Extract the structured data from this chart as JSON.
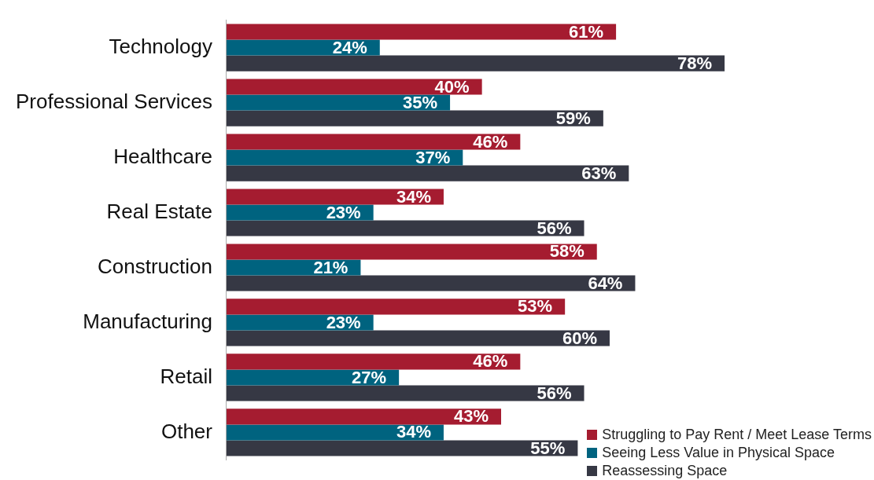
{
  "chart_data": {
    "type": "bar",
    "orientation": "horizontal",
    "legend": "bottom right",
    "categories": [
      "Technology",
      "Professional Services",
      "Healthcare",
      "Real Estate",
      "Construction",
      "Manufacturing",
      "Retail",
      "Other"
    ],
    "series": [
      {
        "name": "Struggling to Pay Rent / Meet Lease Terms",
        "color": "#a51c30",
        "values": [
          61,
          40,
          46,
          34,
          58,
          53,
          46,
          43
        ],
        "value_labels": [
          "61%",
          "40%",
          "46%",
          "34%",
          "58%",
          "53%",
          "46%",
          "43%"
        ]
      },
      {
        "name": "Seeing Less Value in Physical Space",
        "color": "#00637f",
        "values": [
          24,
          35,
          37,
          23,
          21,
          23,
          27,
          34
        ],
        "value_labels": [
          "24%",
          "35%",
          "37%",
          "23%",
          "21%",
          "23%",
          "27%",
          "34%"
        ]
      },
      {
        "name": "Reassessing Space",
        "color": "#363844",
        "values": [
          78,
          59,
          63,
          56,
          64,
          60,
          56,
          55
        ],
        "value_labels": [
          "78%",
          "59%",
          "63%",
          "56%",
          "64%",
          "60%",
          "56%",
          "55%"
        ]
      }
    ]
  }
}
